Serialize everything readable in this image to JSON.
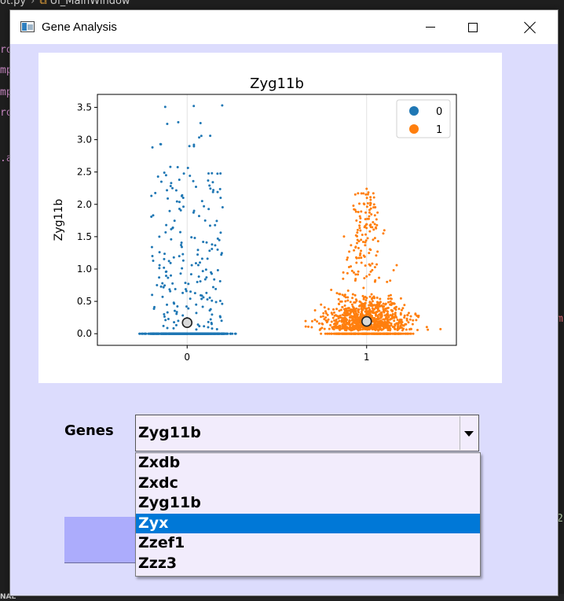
{
  "background_editor": {
    "breadcrumb_file": "ot.py",
    "breadcrumb_class": "Ui_MainWindow",
    "left_fragments": [
      {
        "text": "ro",
        "color": "#c586c0"
      },
      {
        "text": "mp",
        "color": "#c586c0"
      },
      {
        "text": "mp",
        "color": "#c586c0"
      },
      {
        "text": "ro",
        "color": "#c586c0"
      },
      {
        "text": "",
        "color": "#c586c0"
      },
      {
        "text": ".a",
        "color": "#c586c0"
      }
    ],
    "right_fragments": [
      {
        "text": "m",
        "color": "#e06c75"
      },
      {
        "text": "2",
        "color": "#b5cea8"
      }
    ],
    "status_fragment": "NAL"
  },
  "window": {
    "title": "Gene Analysis",
    "icon": "app-window-icon",
    "controls": {
      "minimize": "minimize-icon",
      "maximize": "maximize-icon",
      "close": "close-icon"
    }
  },
  "chart_data": {
    "type": "scatter",
    "title": "Zyg11b",
    "xlabel": "",
    "ylabel": "Zyg11b",
    "categories": [
      "0",
      "1"
    ],
    "xlim": [
      -0.5,
      1.5
    ],
    "ylim": [
      -0.18,
      3.7
    ],
    "yticks": [
      "0.0",
      "0.5",
      "1.0",
      "1.5",
      "2.0",
      "2.5",
      "3.0",
      "3.5"
    ],
    "grid": "vertical lines at category centers",
    "legend": {
      "position": "top-right",
      "entries": [
        "0",
        "1"
      ]
    },
    "colors": {
      "0": "#1f77b4",
      "1": "#ff7f0e"
    },
    "series": [
      {
        "name": "0",
        "category": 0,
        "approx_points_at_zero": 600,
        "nonzero_values": [
          3.53,
          3.27,
          3.06,
          2.93,
          2.9,
          2.58,
          2.49,
          2.48,
          2.45,
          2.38,
          2.35,
          2.29,
          2.25,
          2.22,
          2.19,
          2.14,
          2.1,
          2.05,
          1.97,
          1.93,
          1.9,
          1.83,
          1.75,
          1.68,
          1.64,
          1.57,
          1.5,
          1.47,
          1.42,
          1.38,
          1.34,
          1.3,
          1.26,
          1.23,
          1.2,
          1.16,
          1.13,
          1.1,
          1.06,
          1.02,
          0.99,
          0.96,
          0.93,
          0.9,
          0.87,
          0.84,
          0.81,
          0.78,
          0.75,
          0.72,
          0.69,
          0.66,
          0.63,
          0.6,
          0.57,
          0.54,
          0.51,
          0.48,
          0.45,
          0.42,
          0.39,
          0.36,
          0.33,
          0.3,
          0.27,
          0.24,
          0.21,
          0.18,
          0.15,
          0.12,
          0.1,
          0.08
        ],
        "mean": 0.17
      },
      {
        "name": "1",
        "category": 1,
        "approx_points_at_zero": 260,
        "nonzero_range": [
          0.05,
          2.24
        ],
        "dense_range": [
          0.05,
          1.0
        ],
        "approx_nonzero_count": 1000,
        "max_value": 2.24,
        "mean": 0.19
      }
    ]
  },
  "genes": {
    "label": "Genes",
    "selected": "Zyg11b",
    "arrow_icon": "chevron-down-icon",
    "options": [
      "Zxdb",
      "Zxdc",
      "Zyg11b",
      "Zyx",
      "Zzef1",
      "Zzz3"
    ],
    "highlighted": "Zyx"
  }
}
